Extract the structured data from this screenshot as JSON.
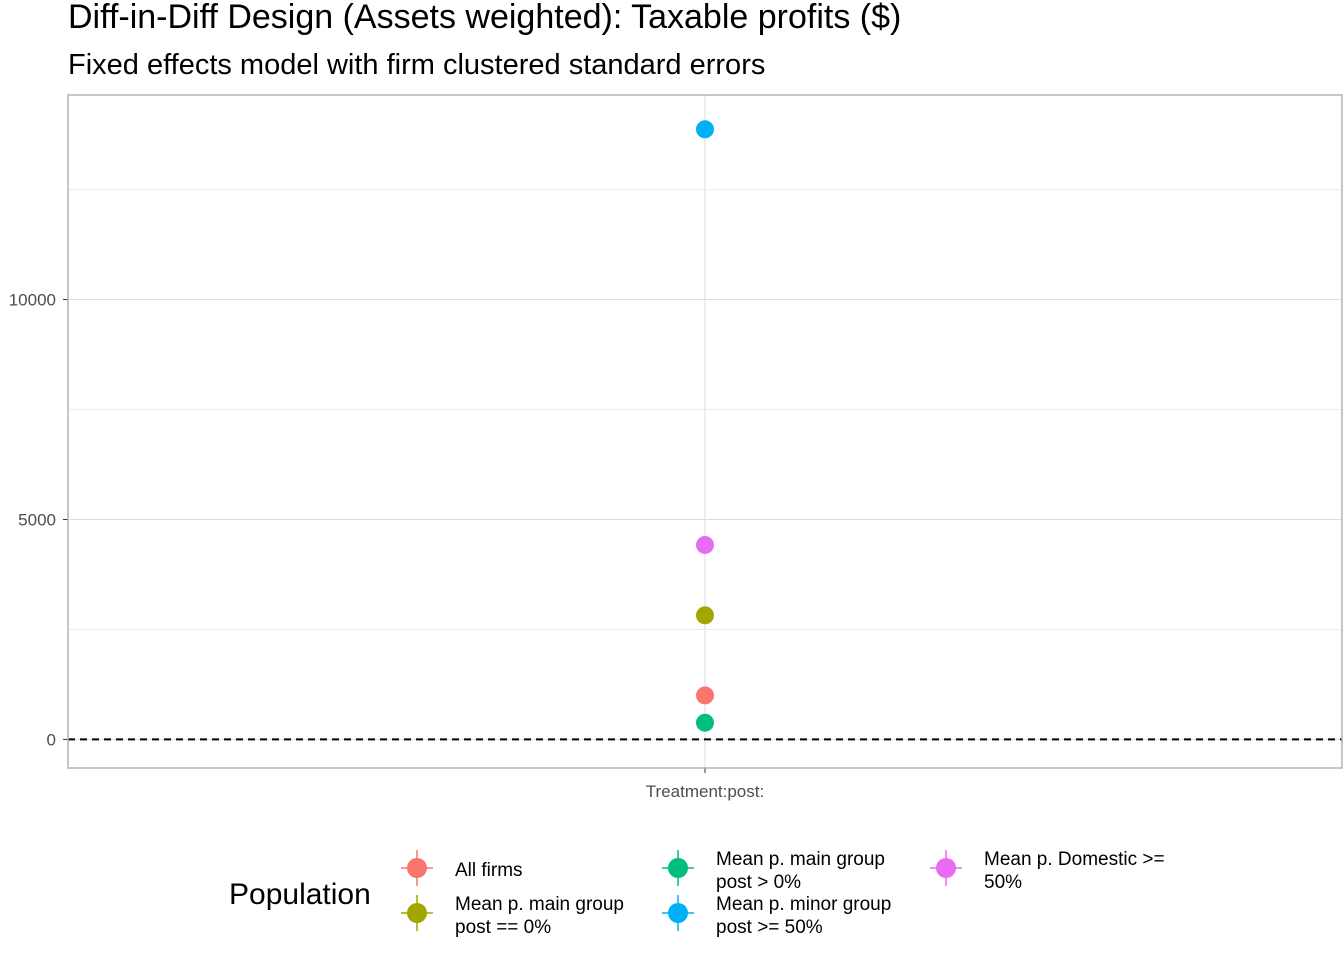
{
  "chart_data": {
    "type": "scatter",
    "title": "Diff-in-Diff Design (Assets weighted): Taxable profits  ($)",
    "subtitle": "Fixed effects model with firm clustered standard errors",
    "xlabel": "",
    "ylabel": "",
    "categories": [
      "Treatment:post:"
    ],
    "ylim": [
      -650,
      14650
    ],
    "y_ticks": [
      0,
      5000,
      10000
    ],
    "y_minor_ticks": [
      2500,
      7500,
      12500
    ],
    "reference_line": {
      "y": 0,
      "style": "dashed"
    },
    "grid": true,
    "legend": {
      "title": "Population",
      "placement": "bottom"
    },
    "series": [
      {
        "name_lines": [
          "All firms"
        ],
        "color": "#F8766D",
        "values": [
          1000
        ]
      },
      {
        "name_lines": [
          "Mean p. main group",
          "post == 0%"
        ],
        "color": "#A3A500",
        "values": [
          2820
        ]
      },
      {
        "name_lines": [
          "Mean p. main group",
          "post > 0%"
        ],
        "color": "#00BF7D",
        "values": [
          380
        ]
      },
      {
        "name_lines": [
          "Mean p. minor group",
          "post >= 50%"
        ],
        "color": "#00B0F6",
        "values": [
          13870
        ]
      },
      {
        "name_lines": [
          "Mean p. Domestic >=",
          "50%"
        ],
        "color": "#E76BF3",
        "values": [
          4420
        ]
      }
    ]
  }
}
